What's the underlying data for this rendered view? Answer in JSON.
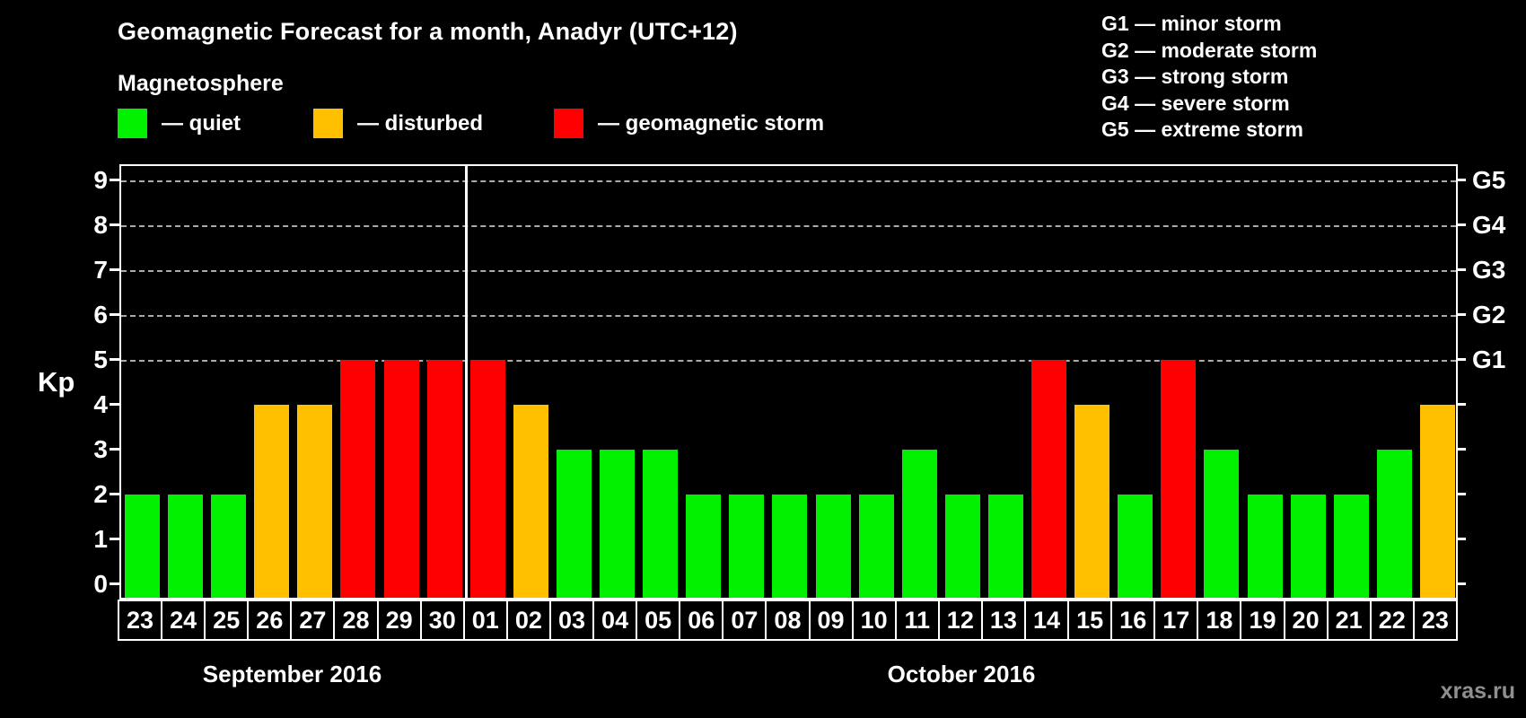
{
  "header": {
    "title": "Geomagnetic Forecast for a month, Anadyr (UTC+12)",
    "subtitle": "Magnetosphere",
    "legend": [
      {
        "key": "quiet",
        "label": "— quiet"
      },
      {
        "key": "disturbed",
        "label": "— disturbed"
      },
      {
        "key": "storm",
        "label": "— geomagnetic storm"
      }
    ],
    "storm_scale": [
      "G1 — minor storm",
      "G2 — moderate storm",
      "G3 — strong storm",
      "G4 — severe storm",
      "G5 — extreme storm"
    ]
  },
  "chart_data": {
    "type": "bar",
    "title": "Geomagnetic Forecast for a month, Anadyr (UTC+12)",
    "ylabel": "Kp",
    "ylim": [
      0,
      9
    ],
    "yticks": [
      0,
      1,
      2,
      3,
      4,
      5,
      6,
      7,
      8,
      9
    ],
    "gridlines_at": [
      5,
      6,
      7,
      8,
      9
    ],
    "grid": "dashed horizontal at storm levels only",
    "legend_position": "top",
    "colors": {
      "quiet": "#00f000",
      "disturbed": "#ffc000",
      "storm": "#ff0000"
    },
    "right_axis": [
      {
        "kp": 5,
        "label": "G1"
      },
      {
        "kp": 6,
        "label": "G2"
      },
      {
        "kp": 7,
        "label": "G3"
      },
      {
        "kp": 8,
        "label": "G4"
      },
      {
        "kp": 9,
        "label": "G5"
      }
    ],
    "months": [
      {
        "label": "September 2016",
        "days": 8
      },
      {
        "label": "October 2016",
        "days": 23
      }
    ],
    "bars": [
      {
        "day": "23",
        "kp": 2,
        "level": "quiet"
      },
      {
        "day": "24",
        "kp": 2,
        "level": "quiet"
      },
      {
        "day": "25",
        "kp": 2,
        "level": "quiet"
      },
      {
        "day": "26",
        "kp": 4,
        "level": "disturbed"
      },
      {
        "day": "27",
        "kp": 4,
        "level": "disturbed"
      },
      {
        "day": "28",
        "kp": 5,
        "level": "storm"
      },
      {
        "day": "29",
        "kp": 5,
        "level": "storm"
      },
      {
        "day": "30",
        "kp": 5,
        "level": "storm"
      },
      {
        "day": "01",
        "kp": 5,
        "level": "storm"
      },
      {
        "day": "02",
        "kp": 4,
        "level": "disturbed"
      },
      {
        "day": "03",
        "kp": 3,
        "level": "quiet"
      },
      {
        "day": "04",
        "kp": 3,
        "level": "quiet"
      },
      {
        "day": "05",
        "kp": 3,
        "level": "quiet"
      },
      {
        "day": "06",
        "kp": 2,
        "level": "quiet"
      },
      {
        "day": "07",
        "kp": 2,
        "level": "quiet"
      },
      {
        "day": "08",
        "kp": 2,
        "level": "quiet"
      },
      {
        "day": "09",
        "kp": 2,
        "level": "quiet"
      },
      {
        "day": "10",
        "kp": 2,
        "level": "quiet"
      },
      {
        "day": "11",
        "kp": 3,
        "level": "quiet"
      },
      {
        "day": "12",
        "kp": 2,
        "level": "quiet"
      },
      {
        "day": "13",
        "kp": 2,
        "level": "quiet"
      },
      {
        "day": "14",
        "kp": 5,
        "level": "storm"
      },
      {
        "day": "15",
        "kp": 4,
        "level": "disturbed"
      },
      {
        "day": "16",
        "kp": 2,
        "level": "quiet"
      },
      {
        "day": "17",
        "kp": 5,
        "level": "storm"
      },
      {
        "day": "18",
        "kp": 3,
        "level": "quiet"
      },
      {
        "day": "19",
        "kp": 2,
        "level": "quiet"
      },
      {
        "day": "20",
        "kp": 2,
        "level": "quiet"
      },
      {
        "day": "21",
        "kp": 2,
        "level": "quiet"
      },
      {
        "day": "22",
        "kp": 3,
        "level": "quiet"
      },
      {
        "day": "23",
        "kp": 4,
        "level": "disturbed"
      }
    ]
  },
  "watermark": "xras.ru"
}
